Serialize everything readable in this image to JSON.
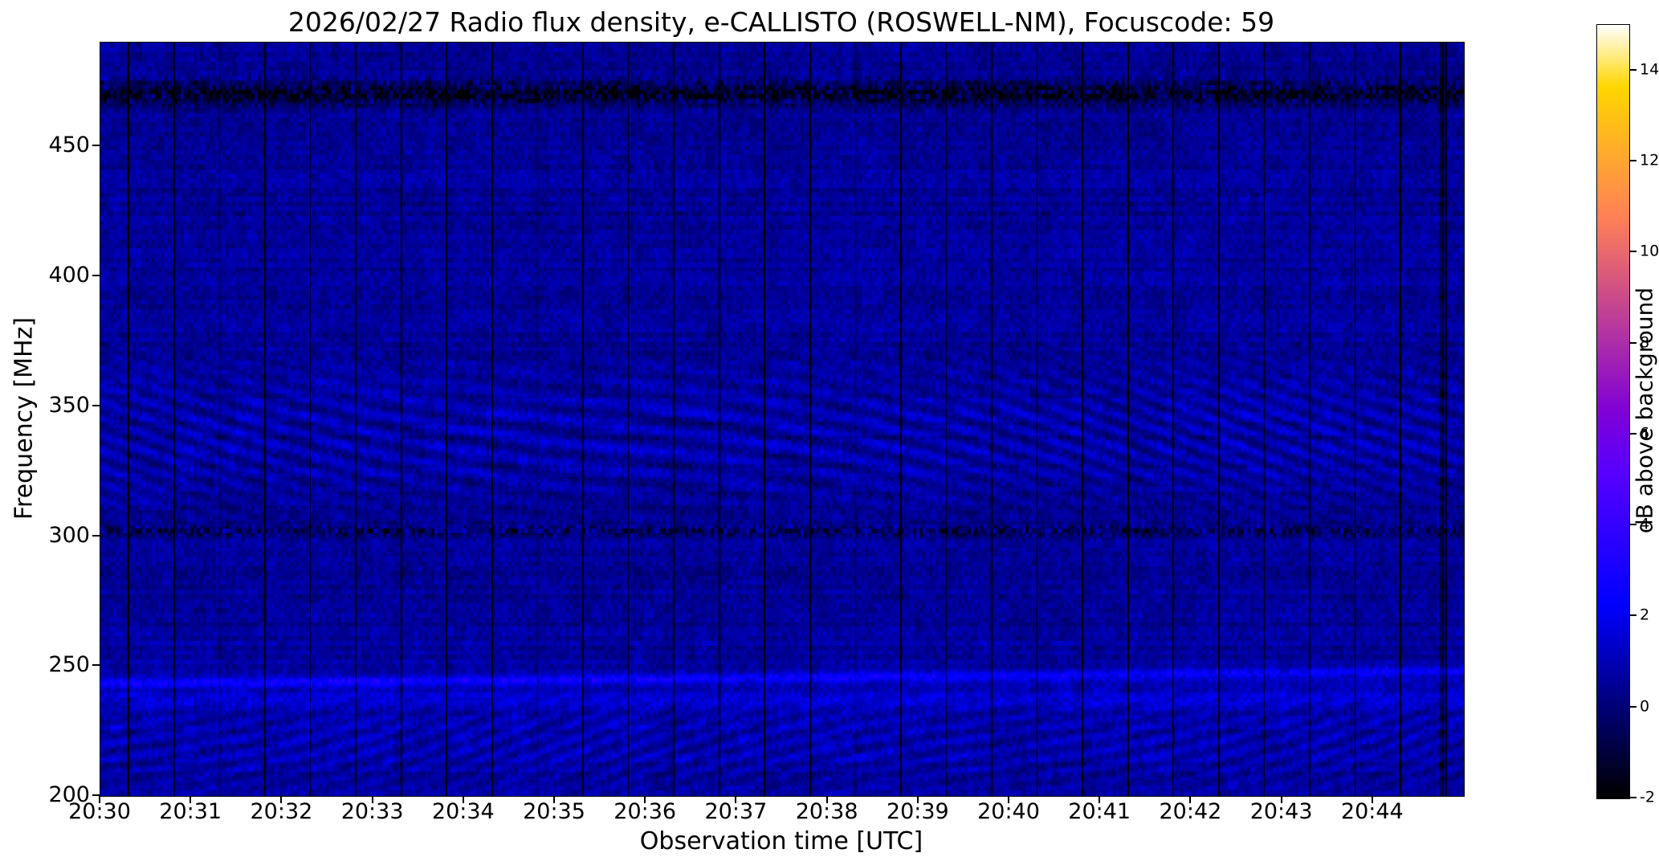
{
  "figure": {
    "title": "2026/02/27  Radio flux density, e-CALLISTO (ROSWELL-NM), Focuscode: 59",
    "xlabel": "Observation time [UTC]",
    "ylabel": "Frequency [MHz]",
    "colorbar_label": "dB above background",
    "date": "2026/02/27",
    "instrument": "e-CALLISTO",
    "station": "ROSWELL-NM",
    "focuscode": "59"
  },
  "chart_data": {
    "type": "heatmap",
    "title": "2026/02/27  Radio flux density, e-CALLISTO (ROSWELL-NM), Focuscode: 59",
    "xlabel": "Observation time [UTC]",
    "ylabel": "Frequency [MHz]",
    "x_start_utc": "20:30",
    "x_end_utc": "20:45",
    "x_span_minutes": 15,
    "x_tick_labels": [
      "20:30",
      "20:31",
      "20:32",
      "20:33",
      "20:34",
      "20:35",
      "20:36",
      "20:37",
      "20:38",
      "20:39",
      "20:40",
      "20:41",
      "20:42",
      "20:43",
      "20:44"
    ],
    "y_range_mhz": [
      200,
      490
    ],
    "y_tick_labels": [
      200,
      250,
      300,
      350,
      400,
      450
    ],
    "grid": false,
    "colorbar": {
      "label": "dB above background",
      "range_db": [
        -2,
        15
      ],
      "tick_labels": [
        -2,
        0,
        2,
        4,
        6,
        8,
        10,
        12,
        14
      ],
      "colormap": "gnuplot2",
      "position": "right"
    },
    "features": {
      "background_db": 0.5,
      "channel_noise_db": 0.45,
      "horizontal_bands": [
        {
          "name": "drifting narrowband emission",
          "freq_start_mhz": 243,
          "freq_end_mhz": 248,
          "halfwidth_mhz": 1.9,
          "amplitude_db": 1.5,
          "speckle_db": 0.5,
          "drifts_up_with_time": true
        },
        {
          "name": "steady faint band",
          "freq_mhz": 236.5,
          "halfwidth_mhz": 2.8,
          "amplitude_db": 0.55,
          "speckle_db": 0.0
        },
        {
          "name": "dark RFI band",
          "freq_mhz": 470,
          "halfwidth_mhz": 3.4,
          "amplitude_db": -1.9,
          "speckle_db": 0.9
        },
        {
          "name": "noisy speckled zone around 470",
          "freq_mhz": 471,
          "halfwidth_mhz": 6.0,
          "amplitude_db": 0.0,
          "speckle_db": 1.1
        },
        {
          "name": "speckled dark channel near 302",
          "freq_mhz": 302,
          "halfwidth_mhz": 2.4,
          "amplitude_db": -1.0,
          "speckle_db": 1.4
        },
        {
          "name": "bright edge below 302",
          "freq_mhz": 296.5,
          "halfwidth_mhz": 2.0,
          "amplitude_db": 0.45,
          "speckle_db": 0.0
        }
      ],
      "ripple_zone": {
        "freq_min_mhz": 300,
        "freq_max_mhz": 378,
        "peak_mhz": 338,
        "amplitude_db": 0.85,
        "pattern": "slanted interference fringes, slant varies slowly with time"
      },
      "low_band_texture": {
        "freq_min_mhz": 200,
        "freq_max_mhz": 250,
        "peak_mhz": 219,
        "amplitude_db": 0.7,
        "pattern": "herringbone patchwork"
      },
      "vertical_line_spacing_sec": 30,
      "vertical_line_offset_sec": 18,
      "vertical_line_db": -2.8,
      "wide_dark_column_utc": "20:44:45"
    },
    "coarse_grid_db": {
      "comment": "mean dB above background, rows = freq_bins_mhz ascending, cols = time bins at minute centers",
      "time_bins_utc": [
        "20:30",
        "20:31",
        "20:32",
        "20:33",
        "20:34",
        "20:35",
        "20:36",
        "20:37",
        "20:38",
        "20:39",
        "20:40",
        "20:41",
        "20:42",
        "20:43",
        "20:44"
      ],
      "freq_bins_mhz": [
        200,
        220,
        240,
        260,
        280,
        300,
        320,
        340,
        360,
        380,
        400,
        420,
        440,
        460,
        475,
        490
      ],
      "values": [
        [
          0.75,
          0.7,
          0.8,
          0.7,
          0.75,
          0.7,
          0.65,
          0.7,
          0.75,
          0.7,
          0.65,
          0.7,
          0.75,
          0.7,
          0.7
        ],
        [
          0.85,
          0.8,
          0.9,
          0.8,
          0.85,
          0.8,
          0.75,
          0.8,
          0.85,
          0.8,
          0.75,
          0.8,
          0.85,
          0.8,
          0.8
        ],
        [
          1.0,
          1.0,
          1.05,
          1.0,
          1.0,
          0.95,
          0.95,
          1.0,
          1.05,
          1.0,
          0.95,
          1.0,
          1.05,
          1.0,
          1.0
        ],
        [
          0.6,
          0.55,
          0.6,
          0.55,
          0.6,
          0.55,
          0.5,
          0.55,
          0.6,
          0.55,
          0.5,
          0.55,
          0.6,
          0.55,
          0.55
        ],
        [
          0.5,
          0.5,
          0.55,
          0.5,
          0.5,
          0.45,
          0.45,
          0.5,
          0.55,
          0.5,
          0.45,
          0.5,
          0.55,
          0.5,
          0.5
        ],
        [
          0.55,
          0.5,
          0.55,
          0.5,
          0.55,
          0.5,
          0.45,
          0.5,
          0.55,
          0.5,
          0.45,
          0.5,
          0.55,
          0.5,
          0.5
        ],
        [
          0.7,
          0.65,
          0.7,
          0.65,
          0.7,
          0.65,
          0.6,
          0.65,
          0.7,
          0.65,
          0.6,
          0.65,
          0.7,
          0.65,
          0.65
        ],
        [
          0.8,
          0.75,
          0.8,
          0.75,
          0.8,
          0.75,
          0.7,
          0.75,
          0.8,
          0.75,
          0.7,
          0.75,
          0.85,
          0.8,
          0.75
        ],
        [
          0.7,
          0.65,
          0.7,
          0.65,
          0.7,
          0.65,
          0.6,
          0.65,
          0.7,
          0.65,
          0.6,
          0.65,
          0.7,
          0.65,
          0.65
        ],
        [
          0.5,
          0.5,
          0.55,
          0.5,
          0.5,
          0.45,
          0.45,
          0.5,
          0.55,
          0.5,
          0.45,
          0.5,
          0.55,
          0.5,
          0.5
        ],
        [
          0.55,
          0.5,
          0.6,
          0.55,
          0.55,
          0.5,
          0.5,
          0.55,
          0.6,
          0.55,
          0.5,
          0.55,
          0.6,
          0.55,
          0.55
        ],
        [
          0.5,
          0.45,
          0.55,
          0.5,
          0.5,
          0.45,
          0.45,
          0.5,
          0.55,
          0.5,
          0.45,
          0.5,
          0.55,
          0.5,
          0.5
        ],
        [
          0.55,
          0.5,
          0.6,
          0.55,
          0.55,
          0.5,
          0.5,
          0.55,
          0.6,
          0.55,
          0.5,
          0.55,
          0.6,
          0.55,
          0.55
        ],
        [
          0.5,
          0.45,
          0.5,
          0.45,
          0.5,
          0.45,
          0.45,
          0.5,
          0.5,
          0.45,
          0.45,
          0.5,
          0.5,
          0.45,
          0.45
        ],
        [
          0.2,
          0.15,
          0.2,
          0.15,
          0.2,
          0.15,
          0.15,
          0.2,
          0.2,
          0.15,
          0.15,
          0.2,
          0.2,
          0.15,
          0.15
        ],
        [
          0.4,
          0.35,
          0.4,
          0.35,
          0.4,
          0.35,
          0.35,
          0.4,
          0.4,
          0.35,
          0.35,
          0.4,
          0.4,
          0.35,
          0.35
        ]
      ]
    }
  }
}
